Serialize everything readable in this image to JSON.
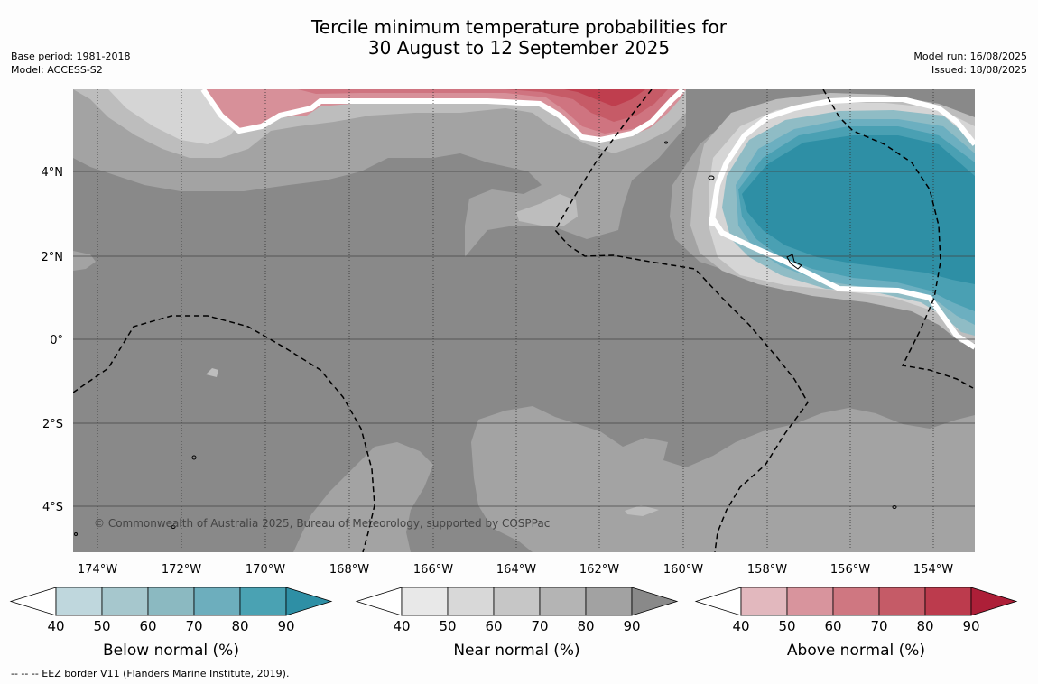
{
  "title": {
    "line1": "Tercile minimum temperature probabilities for",
    "line2": "30 August to 12 September 2025"
  },
  "meta_left": {
    "base_period": "Base period: 1981-2018",
    "model": "Model: ACCESS-S2"
  },
  "meta_right": {
    "model_run": "Model run: 16/08/2025",
    "issued": "Issued: 18/08/2025"
  },
  "map": {
    "lon_labels": [
      "174°W",
      "172°W",
      "170°W",
      "168°W",
      "166°W",
      "164°W",
      "162°W",
      "160°W",
      "158°W",
      "156°W",
      "154°W"
    ],
    "lat_labels": [
      "4°N",
      "2°N",
      "0°",
      "2°S",
      "4°S"
    ],
    "copyright": "© Commonwealth of Australia 2025, Bureau of Meteorology, supported by COSPPac",
    "colors": {
      "near_90": "#898989",
      "near_80": "#a3a3a3",
      "near_70": "#bdbdbd",
      "near_60": "#d5d5d5",
      "below_90": "#2e8fa5",
      "below_80": "#4aa0b3",
      "below_70": "#6cafc0",
      "below_60": "#8fbcc5",
      "above_50": "#d79099",
      "above_60": "#cf7480",
      "above_70": "#c65b67",
      "above_80": "#bf3e4e"
    }
  },
  "colorbars": [
    {
      "title": "Below normal (%)",
      "ticks": [
        "40",
        "50",
        "60",
        "70",
        "80",
        "90"
      ],
      "colors": [
        "#bfd7dd",
        "#a6c7cd",
        "#8bb9c1",
        "#6daebd",
        "#4aa2b3",
        "#2e8fa5"
      ]
    },
    {
      "title": "Near normal (%)",
      "ticks": [
        "40",
        "50",
        "60",
        "70",
        "80",
        "90"
      ],
      "colors": [
        "#e8e8e8",
        "#d8d8d8",
        "#c6c6c6",
        "#b4b4b4",
        "#a2a2a2",
        "#898989"
      ]
    },
    {
      "title": "Above normal (%)",
      "ticks": [
        "40",
        "50",
        "60",
        "70",
        "80",
        "90"
      ],
      "colors": [
        "#e2b8be",
        "#d8949d",
        "#cf7781",
        "#c55b67",
        "#bc3b4d",
        "#ad1f38"
      ]
    }
  ],
  "footnote": "--  --  -- EEZ border V11 (Flanders Marine Institute, 2019)."
}
